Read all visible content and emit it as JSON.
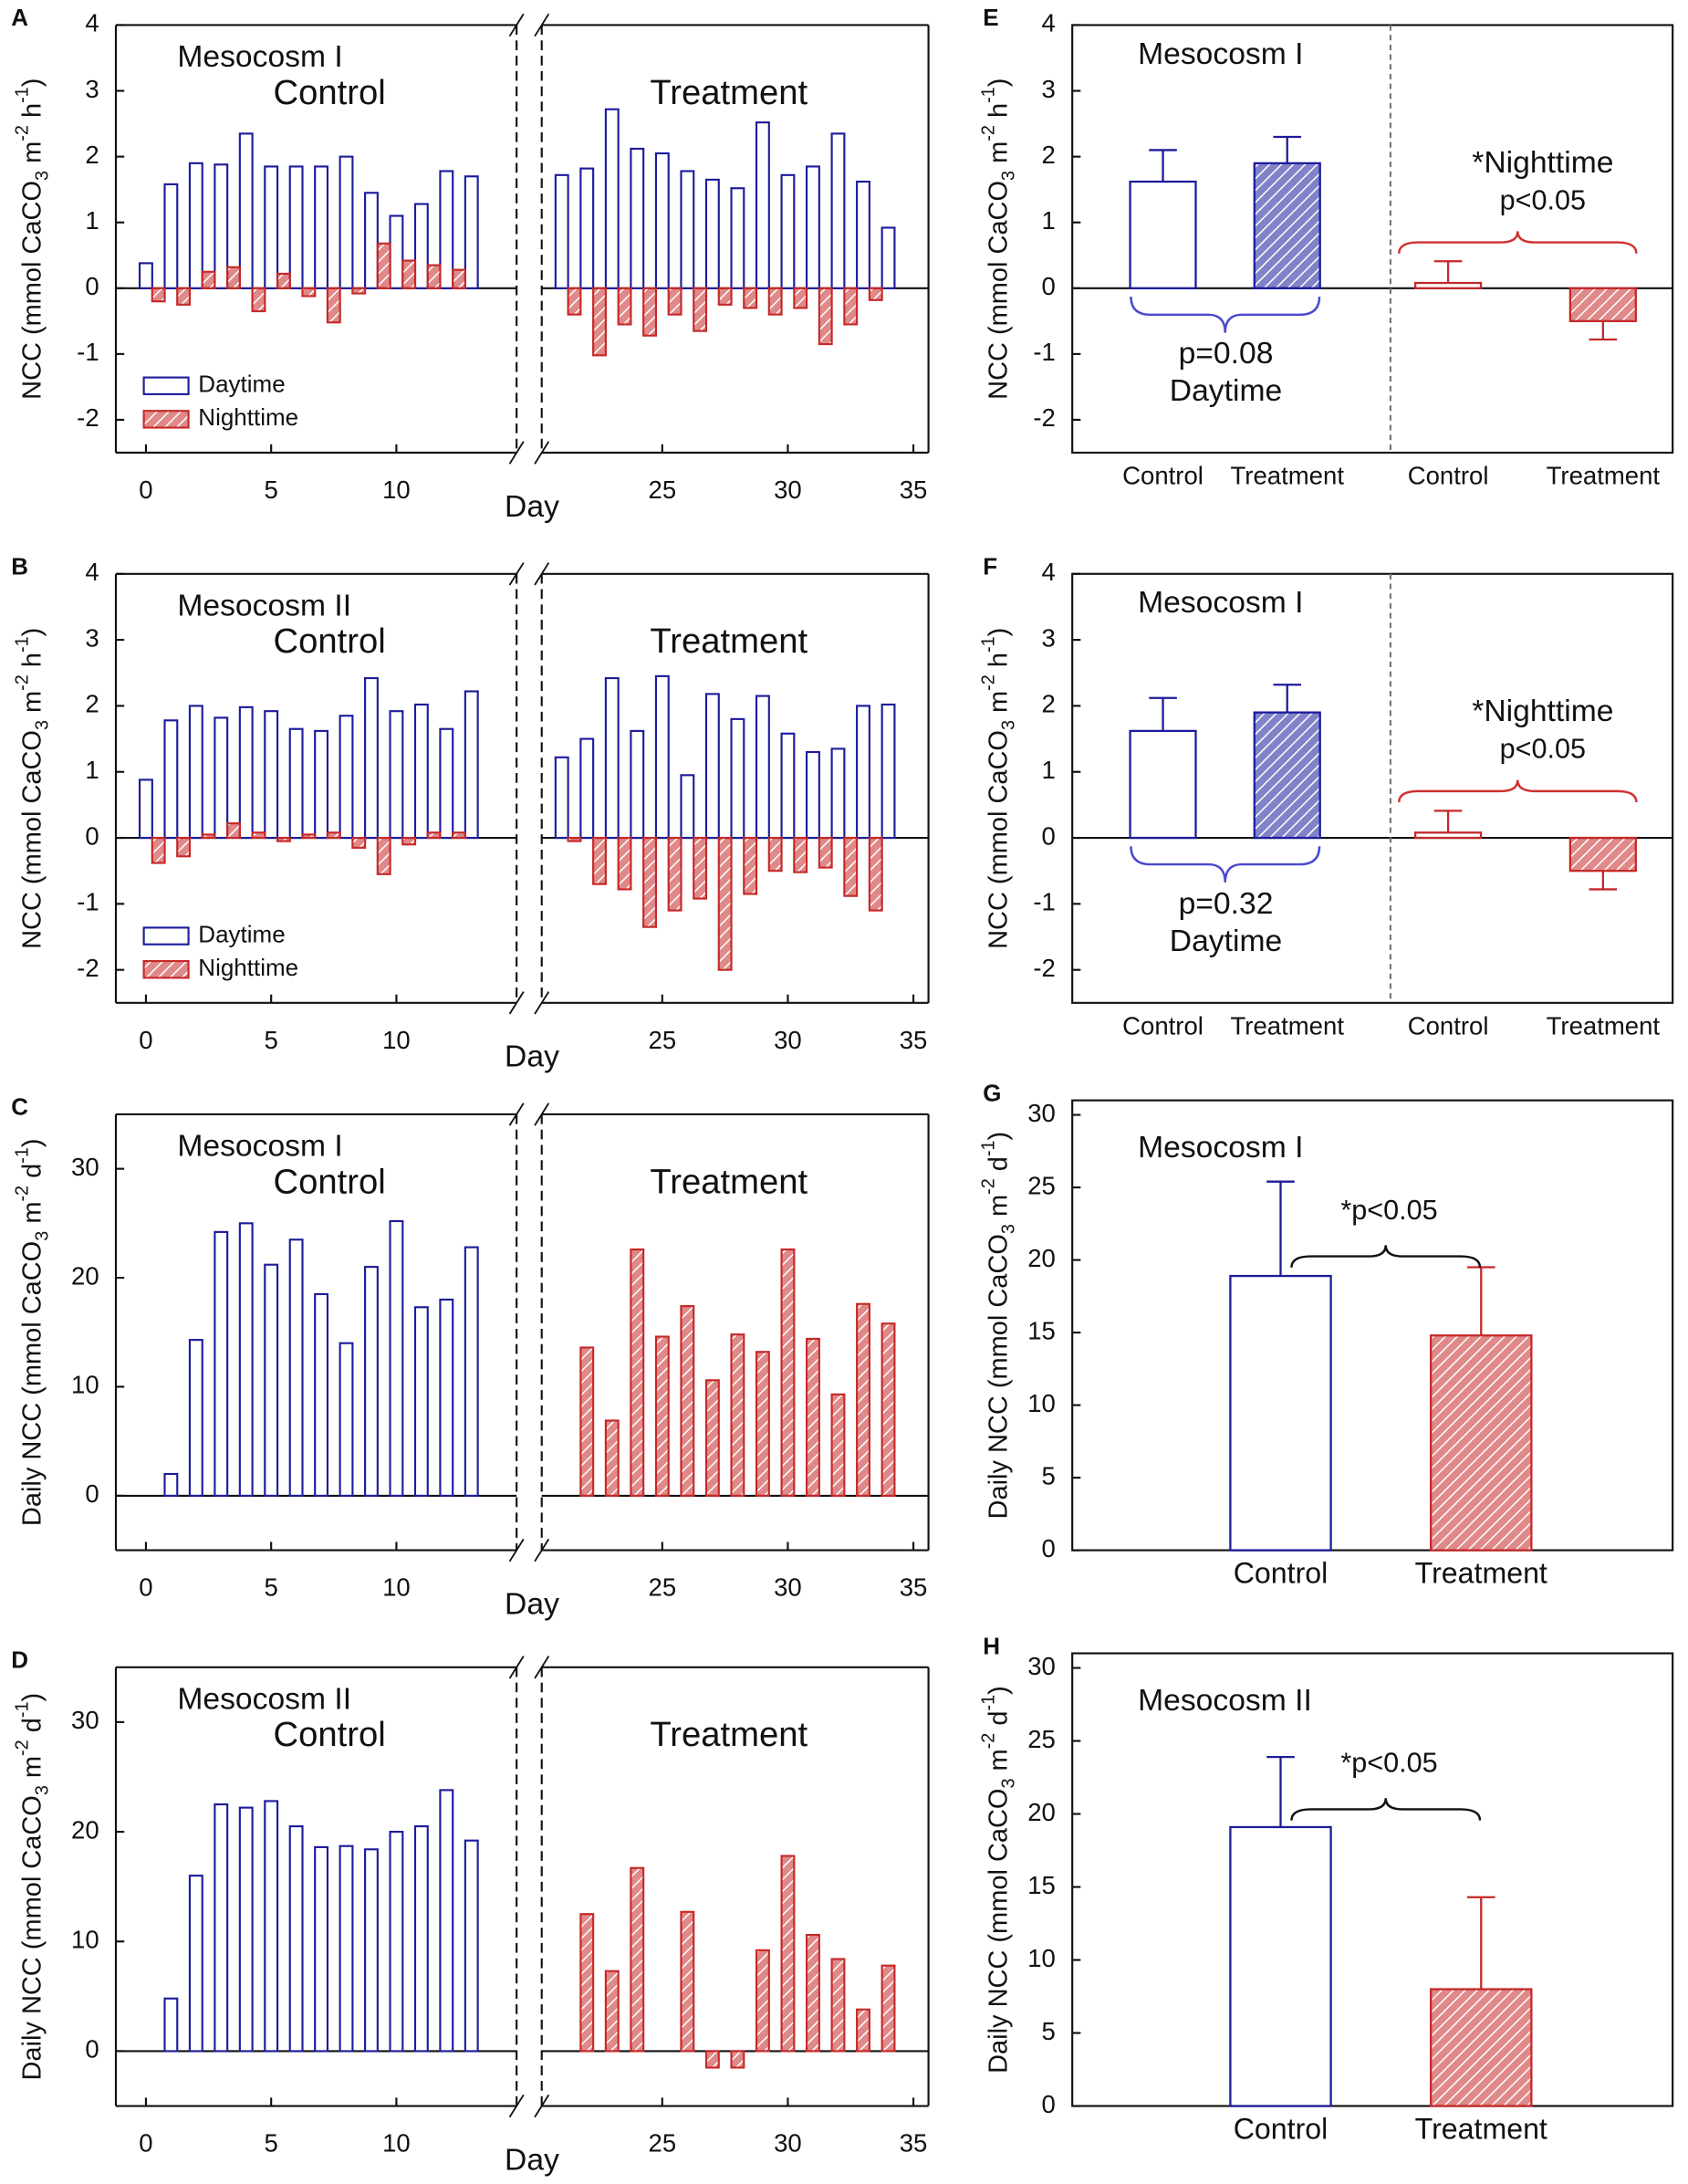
{
  "chart_data": [
    {
      "type": "bar",
      "panel_label": "A",
      "subtitle": "Mesocosm I",
      "left_label": "Control",
      "right_label": "Treatment",
      "x_label": "Day",
      "y_label": [
        "NCC (mmol CaCO",
        "3",
        " m",
        "-2",
        " h",
        "-1",
        ")"
      ],
      "xlim": [
        -1.2,
        35.6
      ],
      "x_break": [
        14.8,
        20.2
      ],
      "xticks": [
        0,
        5,
        10,
        25,
        30,
        35
      ],
      "ylim": [
        -2.5,
        4
      ],
      "yticks": [
        -2,
        -1,
        0,
        1,
        2,
        3,
        4
      ],
      "legend": "lower left",
      "series": [
        {
          "name": "Daytime",
          "color": "#1c1c9c",
          "hatch": false,
          "x": [
            0,
            1,
            2,
            3,
            4,
            5,
            6,
            7,
            8,
            9,
            10,
            11,
            12,
            13,
            21,
            22,
            23,
            24,
            25,
            26,
            27,
            28,
            29,
            30,
            31,
            32,
            33,
            34
          ],
          "values": [
            0.38,
            1.58,
            1.9,
            1.88,
            2.35,
            1.85,
            1.85,
            1.85,
            2.0,
            1.45,
            1.1,
            1.28,
            1.78,
            1.7,
            1.72,
            1.82,
            2.72,
            2.12,
            2.05,
            1.78,
            1.65,
            1.52,
            2.52,
            1.72,
            1.85,
            2.35,
            1.62,
            0.92
          ]
        },
        {
          "name": "Nighttime",
          "color": "#c62828",
          "hatch": true,
          "x": [
            0.5,
            1.5,
            2.5,
            3.5,
            4.5,
            5.5,
            6.5,
            7.5,
            8.5,
            9.5,
            10.5,
            11.5,
            12.5,
            21.5,
            22.5,
            23.5,
            24.5,
            25.5,
            26.5,
            27.5,
            28.5,
            29.5,
            30.5,
            31.5,
            32.5,
            33.5
          ],
          "values": [
            -0.2,
            -0.25,
            0.25,
            0.32,
            -0.35,
            0.22,
            -0.12,
            -0.52,
            -0.08,
            0.68,
            0.42,
            0.35,
            0.28,
            -0.4,
            -1.02,
            -0.55,
            -0.72,
            -0.4,
            -0.65,
            -0.25,
            -0.3,
            -0.4,
            -0.3,
            -0.85,
            -0.55,
            -0.18
          ]
        }
      ]
    },
    {
      "type": "bar",
      "panel_label": "B",
      "subtitle": "Mesocosm II",
      "left_label": "Control",
      "right_label": "Treatment",
      "x_label": "Day",
      "y_label": [
        "NCC (mmol CaCO",
        "3",
        " m",
        "-2",
        " h",
        "-1",
        ")"
      ],
      "xlim": [
        -1.2,
        35.6
      ],
      "x_break": [
        14.8,
        20.2
      ],
      "xticks": [
        0,
        5,
        10,
        25,
        30,
        35
      ],
      "ylim": [
        -2.5,
        4
      ],
      "yticks": [
        -2,
        -1,
        0,
        1,
        2,
        3,
        4
      ],
      "legend": "lower left",
      "series": [
        {
          "name": "Daytime",
          "color": "#1c1c9c",
          "hatch": false,
          "x": [
            0,
            1,
            2,
            3,
            4,
            5,
            6,
            7,
            8,
            9,
            10,
            11,
            12,
            13,
            21,
            22,
            23,
            24,
            25,
            26,
            27,
            28,
            29,
            30,
            31,
            32,
            33,
            34
          ],
          "values": [
            0.88,
            1.78,
            2.0,
            1.82,
            1.98,
            1.92,
            1.65,
            1.62,
            1.85,
            2.42,
            1.92,
            2.02,
            1.65,
            2.22,
            1.22,
            1.5,
            2.42,
            1.62,
            2.45,
            0.95,
            2.18,
            1.8,
            2.15,
            1.58,
            1.3,
            1.35,
            2.0,
            2.02
          ]
        },
        {
          "name": "Nighttime",
          "color": "#c62828",
          "hatch": true,
          "x": [
            0.5,
            1.5,
            2.5,
            3.5,
            4.5,
            5.5,
            6.5,
            7.5,
            8.5,
            9.5,
            10.5,
            11.5,
            12.5,
            21.5,
            22.5,
            23.5,
            24.5,
            25.5,
            26.5,
            27.5,
            28.5,
            29.5,
            30.5,
            31.5,
            32.5,
            33.5
          ],
          "values": [
            -0.38,
            -0.28,
            0.05,
            0.22,
            0.08,
            -0.05,
            0.05,
            0.08,
            -0.15,
            -0.55,
            -0.1,
            0.08,
            0.08,
            -0.05,
            -0.7,
            -0.78,
            -1.35,
            -1.1,
            -0.92,
            -2.0,
            -0.85,
            -0.5,
            -0.52,
            -0.45,
            -0.88,
            -1.1
          ]
        }
      ]
    },
    {
      "type": "bar",
      "panel_label": "C",
      "subtitle": "Mesocosm I",
      "left_label": "Control",
      "right_label": "Treatment",
      "x_label": "Day",
      "y_label": [
        "Daily NCC (mmol CaCO",
        "3",
        " m",
        "-2",
        " d",
        "-1",
        ")"
      ],
      "xlim": [
        -1.2,
        35.6
      ],
      "x_break": [
        14.8,
        20.2
      ],
      "xticks": [
        0,
        5,
        10,
        25,
        30,
        35
      ],
      "ylim": [
        -5,
        35
      ],
      "yticks": [
        0,
        10,
        20,
        30
      ],
      "series": [
        {
          "color": "#1c1c9c",
          "hatch": false,
          "x": [
            1,
            2,
            3,
            4,
            5,
            6,
            7,
            8,
            9,
            10,
            11,
            12,
            13
          ],
          "values": [
            2,
            14.3,
            24.2,
            25,
            21.2,
            23.5,
            18.5,
            14,
            21,
            25.2,
            17.3,
            18,
            22.8
          ]
        },
        {
          "color": "#c62828",
          "hatch": true,
          "x": [
            22,
            23,
            24,
            25,
            26,
            27,
            28,
            29,
            30,
            31,
            32,
            33,
            34
          ],
          "values": [
            13.6,
            6.9,
            22.6,
            14.6,
            17.4,
            10.6,
            14.8,
            13.2,
            22.6,
            14.4,
            9.3,
            17.6,
            15.8
          ]
        }
      ]
    },
    {
      "type": "bar",
      "panel_label": "D",
      "subtitle": "Mesocosm II",
      "left_label": "Control",
      "right_label": "Treatment",
      "x_label": "Day",
      "y_label": [
        "Daily NCC (mmol CaCO",
        "3",
        " m",
        "-2",
        " d",
        "-1",
        ")"
      ],
      "xlim": [
        -1.2,
        35.6
      ],
      "x_break": [
        14.8,
        20.2
      ],
      "xticks": [
        0,
        5,
        10,
        25,
        30,
        35
      ],
      "ylim": [
        -5,
        35
      ],
      "yticks": [
        0,
        10,
        20,
        30
      ],
      "series": [
        {
          "color": "#1c1c9c",
          "hatch": false,
          "x": [
            1,
            2,
            3,
            4,
            5,
            6,
            7,
            8,
            9,
            10,
            11,
            12,
            13
          ],
          "values": [
            4.8,
            16,
            22.5,
            22.2,
            22.8,
            20.5,
            18.6,
            18.7,
            18.4,
            20,
            20.5,
            23.8,
            19.2
          ]
        },
        {
          "color": "#c62828",
          "hatch": true,
          "x": [
            22,
            23,
            24,
            26,
            27,
            28,
            29,
            30,
            31,
            32,
            33,
            34
          ],
          "values": [
            12.5,
            7.3,
            16.7,
            12.7,
            -1.5,
            -1.5,
            9.2,
            17.8,
            10.6,
            8.4,
            3.8,
            7.8
          ]
        }
      ]
    },
    {
      "type": "errorbar",
      "panel_label": "E",
      "subtitle": "Mesocosm I",
      "day_p": "p=0.08",
      "day_label": "Daytime",
      "night_label": "*Nighttime",
      "night_p": "p<0.05",
      "y_label": [
        "NCC (mmol CaCO",
        "3",
        " m",
        "-2",
        " h",
        "-1",
        ")"
      ],
      "categories": [
        "Control",
        "Treatment",
        "Control",
        "Treatment"
      ],
      "separator": true,
      "values": [
        1.62,
        1.9,
        0.08,
        -0.5
      ],
      "errors": [
        0.48,
        0.4,
        0.33,
        0.28
      ],
      "colors": [
        "#1c1c9c",
        "#1c1c9c",
        "#c62828",
        "#c62828"
      ],
      "hatch": [
        false,
        true,
        false,
        true
      ],
      "ylim": [
        -2.5,
        4
      ],
      "yticks": [
        -2,
        -1,
        0,
        1,
        2,
        3,
        4
      ]
    },
    {
      "type": "errorbar",
      "panel_label": "F",
      "subtitle": "Mesocosm I",
      "day_p": "p=0.32",
      "day_label": "Daytime",
      "night_label": "*Nighttime",
      "night_p": "p<0.05",
      "y_label": [
        "NCC (mmol CaCO",
        "3",
        " m",
        "-2",
        " h",
        "-1",
        ")"
      ],
      "categories": [
        "Control",
        "Treatment",
        "Control",
        "Treatment"
      ],
      "separator": true,
      "values": [
        1.62,
        1.9,
        0.08,
        -0.5
      ],
      "errors": [
        0.5,
        0.42,
        0.33,
        0.28
      ],
      "colors": [
        "#1c1c9c",
        "#1c1c9c",
        "#c62828",
        "#c62828"
      ],
      "hatch": [
        false,
        true,
        false,
        true
      ],
      "ylim": [
        -2.5,
        4
      ],
      "yticks": [
        -2,
        -1,
        0,
        1,
        2,
        3,
        4
      ]
    },
    {
      "type": "errorbar",
      "panel_label": "G",
      "subtitle": "Mesocosm I",
      "p_label": "*p<0.05",
      "y_label": [
        "Daily NCC (mmol CaCO",
        "3",
        " m",
        "-2",
        " d",
        "-1",
        ")"
      ],
      "categories": [
        "Control",
        "Treatment"
      ],
      "values": [
        18.9,
        14.8
      ],
      "errors": [
        6.5,
        4.7
      ],
      "colors": [
        "#1c1c9c",
        "#c62828"
      ],
      "hatch": [
        false,
        true
      ],
      "ylim": [
        0,
        31
      ],
      "yticks": [
        0,
        5,
        10,
        15,
        20,
        25,
        30
      ]
    },
    {
      "type": "errorbar",
      "panel_label": "H",
      "subtitle": "Mesocosm II",
      "p_label": "*p<0.05",
      "y_label": [
        "Daily NCC (mmol CaCO",
        "3",
        " m",
        "-2",
        " d",
        "-1",
        ")"
      ],
      "categories": [
        "Control",
        "Treatment"
      ],
      "values": [
        19.1,
        8.0
      ],
      "errors": [
        4.8,
        6.3
      ],
      "colors": [
        "#1c1c9c",
        "#c62828"
      ],
      "hatch": [
        false,
        true
      ],
      "ylim": [
        0,
        31
      ],
      "yticks": [
        0,
        5,
        10,
        15,
        20,
        25,
        30
      ]
    }
  ]
}
